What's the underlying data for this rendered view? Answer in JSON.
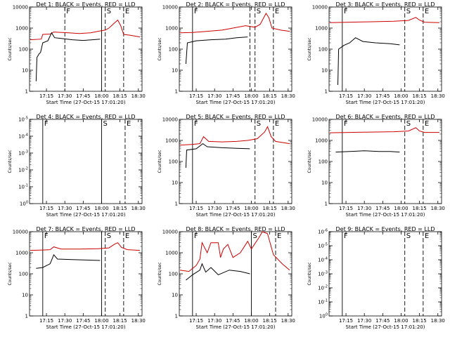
{
  "chart_data": [
    {
      "type": "line",
      "title": "Det 1: BLACK = Events, RED = LLD",
      "xlabel": "Start Time (27-Oct-15 17:01:20)",
      "ylabel": "Counts/sec",
      "yscale": "log",
      "yticks": [
        "1",
        "10",
        "100",
        "1000",
        "10000"
      ],
      "xticks": [
        "17:15",
        "17:30",
        "17:45",
        "18:00",
        "18:15",
        "18:30"
      ],
      "markers": [
        {
          "t": 17.5,
          "label": "F",
          "style": "dashed"
        },
        {
          "t": 18.0,
          "label": "",
          "style": "solid"
        },
        {
          "t": 18.05,
          "label": "S",
          "style": "dashed"
        },
        {
          "t": 18.3,
          "label": "E",
          "style": "dashed"
        }
      ],
      "series": [
        {
          "color": "#cc0000",
          "points": [
            [
              17.03,
              280
            ],
            [
              17.18,
              300
            ],
            [
              17.2,
              500
            ],
            [
              17.3,
              520
            ],
            [
              17.35,
              650
            ],
            [
              17.55,
              600
            ],
            [
              17.7,
              550
            ],
            [
              17.85,
              600
            ],
            [
              17.95,
              700
            ],
            [
              18.05,
              800
            ],
            [
              18.1,
              1000
            ],
            [
              18.18,
              1800
            ],
            [
              18.22,
              2400
            ],
            [
              18.26,
              1300
            ],
            [
              18.3,
              500
            ],
            [
              18.4,
              450
            ],
            [
              18.52,
              380
            ]
          ]
        },
        {
          "color": "#000000",
          "points": [
            [
              17.11,
              3
            ],
            [
              17.12,
              40
            ],
            [
              17.15,
              60
            ],
            [
              17.17,
              70
            ],
            [
              17.2,
              200
            ],
            [
              17.27,
              250
            ],
            [
              17.32,
              600
            ],
            [
              17.36,
              350
            ],
            [
              17.45,
              320
            ],
            [
              17.6,
              280
            ],
            [
              17.75,
              260
            ],
            [
              17.88,
              280
            ],
            [
              17.98,
              300
            ]
          ]
        }
      ]
    },
    {
      "type": "line",
      "title": "Det 2: BLACK = Events, RED = LLD",
      "xlabel": "Start Time (27-Oct-15 17:01:20)",
      "ylabel": "Counts/sec",
      "yscale": "log",
      "yticks": [
        "1",
        "10",
        "100",
        "1000",
        "10000"
      ],
      "xticks": [
        "17:15",
        "17:30",
        "17:45",
        "18:00",
        "18:15",
        "18:30"
      ],
      "markers": [
        {
          "t": 17.2,
          "label": "F",
          "style": "solid"
        },
        {
          "t": 17.98,
          "label": "",
          "style": "dashed"
        },
        {
          "t": 18.05,
          "label": "S",
          "style": "dashed"
        },
        {
          "t": 18.3,
          "label": "E",
          "style": "dashed"
        }
      ],
      "series": [
        {
          "color": "#cc0000",
          "points": [
            [
              17.03,
              600
            ],
            [
              17.2,
              620
            ],
            [
              17.4,
              700
            ],
            [
              17.6,
              800
            ],
            [
              17.75,
              1000
            ],
            [
              17.92,
              1300
            ],
            [
              18.05,
              1100
            ],
            [
              18.12,
              1500
            ],
            [
              18.2,
              5000
            ],
            [
              18.24,
              3000
            ],
            [
              18.28,
              1000
            ],
            [
              18.4,
              800
            ],
            [
              18.52,
              700
            ]
          ]
        },
        {
          "color": "#000000",
          "points": [
            [
              17.11,
              20
            ],
            [
              17.13,
              200
            ],
            [
              17.25,
              250
            ],
            [
              17.45,
              280
            ],
            [
              17.65,
              300
            ],
            [
              17.8,
              350
            ],
            [
              17.95,
              380
            ]
          ]
        }
      ]
    },
    {
      "type": "line",
      "title": "Det 3: BLACK = Events, RED = LLD",
      "xlabel": "Start Time (27-Oct-15 17:01:20)",
      "ylabel": "Counts/sec",
      "yscale": "log",
      "yticks": [
        "1",
        "10",
        "100",
        "1000",
        "10000"
      ],
      "xticks": [
        "17:15",
        "17:30",
        "17:45",
        "18:00",
        "18:15",
        "18:30"
      ],
      "markers": [
        {
          "t": 17.2,
          "label": "F",
          "style": "solid"
        },
        {
          "t": 18.05,
          "label": "S",
          "style": "dashed"
        },
        {
          "t": 18.3,
          "label": "E",
          "style": "dashed"
        }
      ],
      "series": [
        {
          "color": "#cc0000",
          "points": [
            [
              17.03,
              1800
            ],
            [
              17.3,
              1900
            ],
            [
              17.6,
              2000
            ],
            [
              17.9,
              2100
            ],
            [
              18.1,
              2300
            ],
            [
              18.2,
              3200
            ],
            [
              18.25,
              2400
            ],
            [
              18.32,
              1900
            ],
            [
              18.52,
              1800
            ]
          ]
        },
        {
          "color": "#000000",
          "points": [
            [
              17.14,
              2
            ],
            [
              17.15,
              100
            ],
            [
              17.22,
              150
            ],
            [
              17.3,
              200
            ],
            [
              17.38,
              350
            ],
            [
              17.48,
              230
            ],
            [
              17.65,
              200
            ],
            [
              17.85,
              180
            ],
            [
              17.98,
              160
            ]
          ]
        }
      ]
    },
    {
      "type": "line",
      "title": "Det 4: BLACK = Events, RED = LLD",
      "xlabel": "Start Time (27-Oct-15 17:01:20)",
      "ylabel": "Counts/sec",
      "yscale": "log",
      "yticks": [
        "10^0",
        "10^-1",
        "10^-2",
        "10^-3",
        "10^-4",
        "10^-5"
      ],
      "xticks": [
        "17:15",
        "17:30",
        "17:45",
        "18:00",
        "18:15",
        "18:30"
      ],
      "markers": [
        {
          "t": 17.2,
          "label": "F",
          "style": "solid"
        },
        {
          "t": 18.0,
          "label": "S",
          "style": "solid"
        },
        {
          "t": 18.32,
          "label": "E",
          "style": "dashed"
        }
      ],
      "series": []
    },
    {
      "type": "line",
      "title": "Det 5: BLACK = Events, RED = LLD",
      "xlabel": "Start Time (27-Oct-15 17:01:20)",
      "ylabel": "Counts/sec",
      "yscale": "log",
      "yticks": [
        "1",
        "10",
        "100",
        "1000",
        "10000"
      ],
      "xticks": [
        "17:15",
        "17:30",
        "17:45",
        "18:00",
        "18:15",
        "18:30"
      ],
      "markers": [
        {
          "t": 17.2,
          "label": "F",
          "style": "solid"
        },
        {
          "t": 18.05,
          "label": "S",
          "style": "dashed"
        },
        {
          "t": 18.3,
          "label": "E",
          "style": "dashed"
        }
      ],
      "series": [
        {
          "color": "#cc0000",
          "points": [
            [
              17.03,
              600
            ],
            [
              17.2,
              650
            ],
            [
              17.3,
              700
            ],
            [
              17.35,
              1500
            ],
            [
              17.42,
              900
            ],
            [
              17.6,
              850
            ],
            [
              17.8,
              900
            ],
            [
              17.95,
              1000
            ],
            [
              18.08,
              1200
            ],
            [
              18.18,
              2500
            ],
            [
              18.22,
              4500
            ],
            [
              18.27,
              1500
            ],
            [
              18.33,
              900
            ],
            [
              18.52,
              700
            ]
          ]
        },
        {
          "color": "#000000",
          "points": [
            [
              17.11,
              50
            ],
            [
              17.12,
              350
            ],
            [
              17.25,
              400
            ],
            [
              17.34,
              700
            ],
            [
              17.4,
              500
            ],
            [
              17.6,
              450
            ],
            [
              17.8,
              420
            ],
            [
              17.98,
              400
            ]
          ]
        }
      ]
    },
    {
      "type": "line",
      "title": "Det 6: BLACK = Events, RED = LLD",
      "xlabel": "Start Time (27-Oct-15 17:01:20)",
      "ylabel": "Counts/sec",
      "yscale": "log",
      "yticks": [
        "1",
        "10",
        "100",
        "1000",
        "10000"
      ],
      "xticks": [
        "17:15",
        "17:30",
        "17:45",
        "18:00",
        "18:15",
        "18:30"
      ],
      "markers": [
        {
          "t": 17.2,
          "label": "F",
          "style": "solid"
        },
        {
          "t": 18.05,
          "label": "S",
          "style": "dashed"
        },
        {
          "t": 18.3,
          "label": "E",
          "style": "dashed"
        }
      ],
      "series": [
        {
          "color": "#cc0000",
          "points": [
            [
              17.03,
              2300
            ],
            [
              17.3,
              2400
            ],
            [
              17.6,
              2500
            ],
            [
              17.9,
              2600
            ],
            [
              18.1,
              2800
            ],
            [
              18.2,
              4000
            ],
            [
              18.25,
              2800
            ],
            [
              18.32,
              2400
            ],
            [
              18.52,
              2400
            ]
          ]
        },
        {
          "color": "#000000",
          "points": [
            [
              17.11,
              280
            ],
            [
              17.3,
              300
            ],
            [
              17.5,
              320
            ],
            [
              17.7,
              300
            ],
            [
              17.85,
              300
            ],
            [
              17.98,
              280
            ]
          ]
        }
      ]
    },
    {
      "type": "line",
      "title": "Det 7: BLACK = Events, RED = LLD",
      "xlabel": "Start Time (27-Oct-15 17:01:20)",
      "ylabel": "Counts/sec",
      "yscale": "log",
      "yticks": [
        "1",
        "10",
        "100",
        "1000",
        "10000"
      ],
      "xticks": [
        "17:15",
        "17:30",
        "17:45",
        "18:00",
        "18:15",
        "18:30"
      ],
      "markers": [
        {
          "t": 17.2,
          "label": "F",
          "style": "solid"
        },
        {
          "t": 18.0,
          "label": "",
          "style": "solid"
        },
        {
          "t": 18.05,
          "label": "S",
          "style": "dashed"
        },
        {
          "t": 18.3,
          "label": "E",
          "style": "dashed"
        }
      ],
      "series": [
        {
          "color": "#cc0000",
          "points": [
            [
              17.03,
              1300
            ],
            [
              17.2,
              1350
            ],
            [
              17.3,
              1400
            ],
            [
              17.35,
              1900
            ],
            [
              17.45,
              1500
            ],
            [
              17.7,
              1500
            ],
            [
              17.95,
              1550
            ],
            [
              18.1,
              1700
            ],
            [
              18.18,
              2600
            ],
            [
              18.22,
              3000
            ],
            [
              18.27,
              1800
            ],
            [
              18.35,
              1400
            ],
            [
              18.52,
              1300
            ]
          ]
        },
        {
          "color": "#000000",
          "points": [
            [
              17.11,
              180
            ],
            [
              17.2,
              200
            ],
            [
              17.3,
              300
            ],
            [
              17.35,
              800
            ],
            [
              17.4,
              500
            ],
            [
              17.6,
              470
            ],
            [
              17.8,
              450
            ],
            [
              17.98,
              430
            ]
          ]
        }
      ]
    },
    {
      "type": "line",
      "title": "Det 8: BLACK = Events, RED = LLD",
      "xlabel": "Start Time (27-Oct-15 17:01:20)",
      "ylabel": "Counts/sec",
      "yscale": "log",
      "yticks": [
        "1",
        "10",
        "100",
        "1000",
        "10000"
      ],
      "xticks": [
        "17:15",
        "17:30",
        "17:45",
        "18:00",
        "18:15",
        "18:30"
      ],
      "markers": [
        {
          "t": 17.2,
          "label": "F",
          "style": "solid"
        },
        {
          "t": 18.0,
          "label": "S",
          "style": "solid"
        },
        {
          "t": 18.33,
          "label": "E",
          "style": "dashed"
        }
      ],
      "series": [
        {
          "color": "#cc0000",
          "points": [
            [
              17.03,
              150
            ],
            [
              17.15,
              130
            ],
            [
              17.25,
              250
            ],
            [
              17.3,
              500
            ],
            [
              17.33,
              3000
            ],
            [
              17.4,
              1000
            ],
            [
              17.45,
              3000
            ],
            [
              17.55,
              3000
            ],
            [
              17.58,
              600
            ],
            [
              17.62,
              1500
            ],
            [
              17.68,
              2500
            ],
            [
              17.75,
              600
            ],
            [
              17.85,
              1000
            ],
            [
              17.95,
              3500
            ],
            [
              18.0,
              1500
            ],
            [
              18.1,
              5000
            ],
            [
              18.15,
              10000
            ],
            [
              18.22,
              8000
            ],
            [
              18.3,
              800
            ],
            [
              18.42,
              300
            ],
            [
              18.52,
              150
            ]
          ]
        },
        {
          "color": "#000000",
          "points": [
            [
              17.11,
              50
            ],
            [
              17.2,
              90
            ],
            [
              17.3,
              150
            ],
            [
              17.33,
              300
            ],
            [
              17.38,
              120
            ],
            [
              17.45,
              200
            ],
            [
              17.55,
              90
            ],
            [
              17.7,
              150
            ],
            [
              17.85,
              130
            ],
            [
              17.98,
              100
            ]
          ]
        }
      ]
    },
    {
      "type": "line",
      "title": "Det 9: BLACK = Events, RED = LLD",
      "xlabel": "Start Time (27-Oct-15 17:01:20)",
      "ylabel": "Counts/sec",
      "yscale": "log",
      "yticks": [
        "10^0",
        "10^-1",
        "10^-2",
        "10^-3",
        "10^-4",
        "10^-5",
        "10^-6"
      ],
      "xticks": [
        "17:15",
        "17:30",
        "17:45",
        "18:00",
        "18:15",
        "18:30"
      ],
      "markers": [
        {
          "t": 17.2,
          "label": "F",
          "style": "solid"
        },
        {
          "t": 18.05,
          "label": "S",
          "style": "dashed"
        },
        {
          "t": 18.3,
          "label": "E",
          "style": "dashed"
        }
      ],
      "series": []
    }
  ]
}
